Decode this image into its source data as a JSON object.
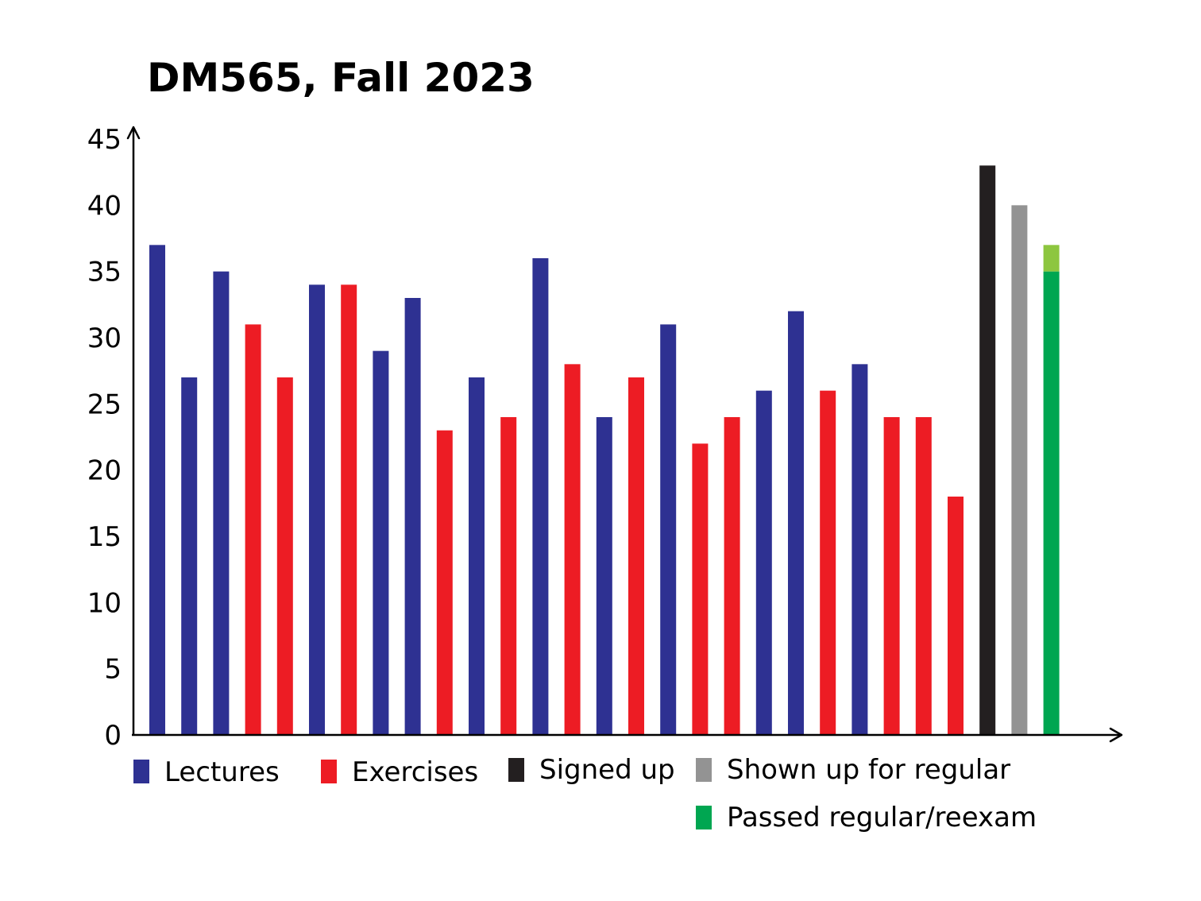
{
  "chart_data": {
    "type": "bar",
    "title": "DM565, Fall 2023",
    "xlabel": "",
    "ylabel": "",
    "ylim": [
      0,
      45
    ],
    "yticks": [
      "0",
      "5",
      "10",
      "15",
      "20",
      "25",
      "30",
      "35",
      "40",
      "45"
    ],
    "grid": false,
    "legend_position": "bottom",
    "colors": {
      "Lectures": "#2e3192",
      "Exercises": "#ed1c24",
      "Signed up": "#231f20",
      "Shown up for regular": "#939393",
      "Passed regular/reexam": "#00a651",
      "Passed reexam": "#8dc63f"
    },
    "bars": [
      {
        "series": "Lectures",
        "value": 37
      },
      {
        "series": "Lectures",
        "value": 27
      },
      {
        "series": "Lectures",
        "value": 35
      },
      {
        "series": "Exercises",
        "value": 31
      },
      {
        "series": "Exercises",
        "value": 27
      },
      {
        "series": "Lectures",
        "value": 34
      },
      {
        "series": "Exercises",
        "value": 34
      },
      {
        "series": "Lectures",
        "value": 29
      },
      {
        "series": "Lectures",
        "value": 33
      },
      {
        "series": "Exercises",
        "value": 23
      },
      {
        "series": "Lectures",
        "value": 27
      },
      {
        "series": "Exercises",
        "value": 24
      },
      {
        "series": "Lectures",
        "value": 36
      },
      {
        "series": "Exercises",
        "value": 28
      },
      {
        "series": "Lectures",
        "value": 24
      },
      {
        "series": "Exercises",
        "value": 27
      },
      {
        "series": "Lectures",
        "value": 31
      },
      {
        "series": "Exercises",
        "value": 22
      },
      {
        "series": "Exercises",
        "value": 24
      },
      {
        "series": "Lectures",
        "value": 26
      },
      {
        "series": "Lectures",
        "value": 32
      },
      {
        "series": "Exercises",
        "value": 26
      },
      {
        "series": "Lectures",
        "value": 28
      },
      {
        "series": "Exercises",
        "value": 24
      },
      {
        "series": "Exercises",
        "value": 24
      },
      {
        "series": "Exercises",
        "value": 18
      },
      {
        "series": "Signed up",
        "value": 43
      },
      {
        "series": "Shown up for regular",
        "value": 40
      },
      {
        "series": "Passed regular/reexam",
        "value": 35,
        "stack": [
          {
            "series": "Passed regular/reexam",
            "value": 35
          },
          {
            "series": "Passed reexam",
            "value": 2
          }
        ]
      }
    ],
    "legend": [
      {
        "label": "Lectures",
        "color": "#2e3192"
      },
      {
        "label": "Exercises",
        "color": "#ed1c24"
      },
      {
        "label": "Signed up",
        "color": "#231f20"
      },
      {
        "label": "Shown up for regular",
        "color": "#939393"
      },
      {
        "label": "Passed regular/reexam",
        "color": "#00a651"
      }
    ]
  }
}
